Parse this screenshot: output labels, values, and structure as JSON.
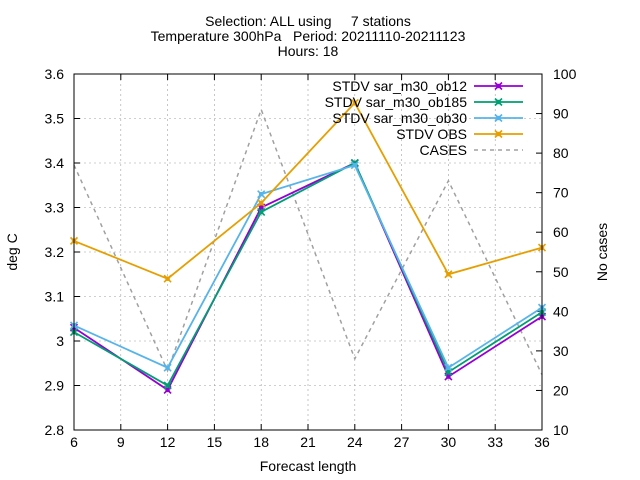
{
  "chart_data": {
    "type": "line",
    "title_lines": [
      "Selection: ALL using     7 stations",
      "Temperature 300hPa   Period: 20211110-20211123",
      "Hours: 18"
    ],
    "xlabel": "Forecast length",
    "ylabel": "deg C",
    "y2label": "No cases",
    "xlim": [
      6,
      36
    ],
    "ylim": [
      2.8,
      3.6
    ],
    "y2lim": [
      10,
      100
    ],
    "xticks": [
      "6",
      "9",
      "12",
      "15",
      "18",
      "21",
      "24",
      "27",
      "30",
      "33",
      "36"
    ],
    "yticks": [
      "2.8",
      "2.9",
      "3",
      "3.1",
      "3.2",
      "3.3",
      "3.4",
      "3.5",
      "3.6"
    ],
    "y2ticks": [
      "10",
      "20",
      "30",
      "40",
      "50",
      "60",
      "70",
      "80",
      "90",
      "100"
    ],
    "grid": true,
    "legend_position": "top-right",
    "x": [
      6,
      12,
      18,
      24,
      30,
      36
    ],
    "series": [
      {
        "name": "STDV sar_m30_ob12",
        "color": "#9400d3",
        "axis": "y",
        "marker": "x",
        "dashed": false,
        "values": [
          3.03,
          2.89,
          3.3,
          3.4,
          2.92,
          3.055
        ]
      },
      {
        "name": "STDV sar_m30_ob185",
        "color": "#009e73",
        "axis": "y",
        "marker": "x",
        "dashed": false,
        "values": [
          3.02,
          2.9,
          3.29,
          3.4,
          2.93,
          3.065
        ]
      },
      {
        "name": "STDV sar_m30_ob30",
        "color": "#56b4e9",
        "axis": "y",
        "marker": "x",
        "dashed": false,
        "values": [
          3.035,
          2.94,
          3.33,
          3.395,
          2.94,
          3.075
        ]
      },
      {
        "name": "STDV OBS",
        "color": "#e69f00",
        "axis": "y",
        "marker": "x",
        "dashed": false,
        "values": [
          3.225,
          3.14,
          3.31,
          3.535,
          3.15,
          3.21
        ]
      },
      {
        "name": "CASES",
        "color": "#a0a0a0",
        "axis": "y2",
        "marker": "none",
        "dashed": true,
        "values": [
          77,
          25,
          91,
          28,
          73,
          24
        ]
      }
    ]
  }
}
